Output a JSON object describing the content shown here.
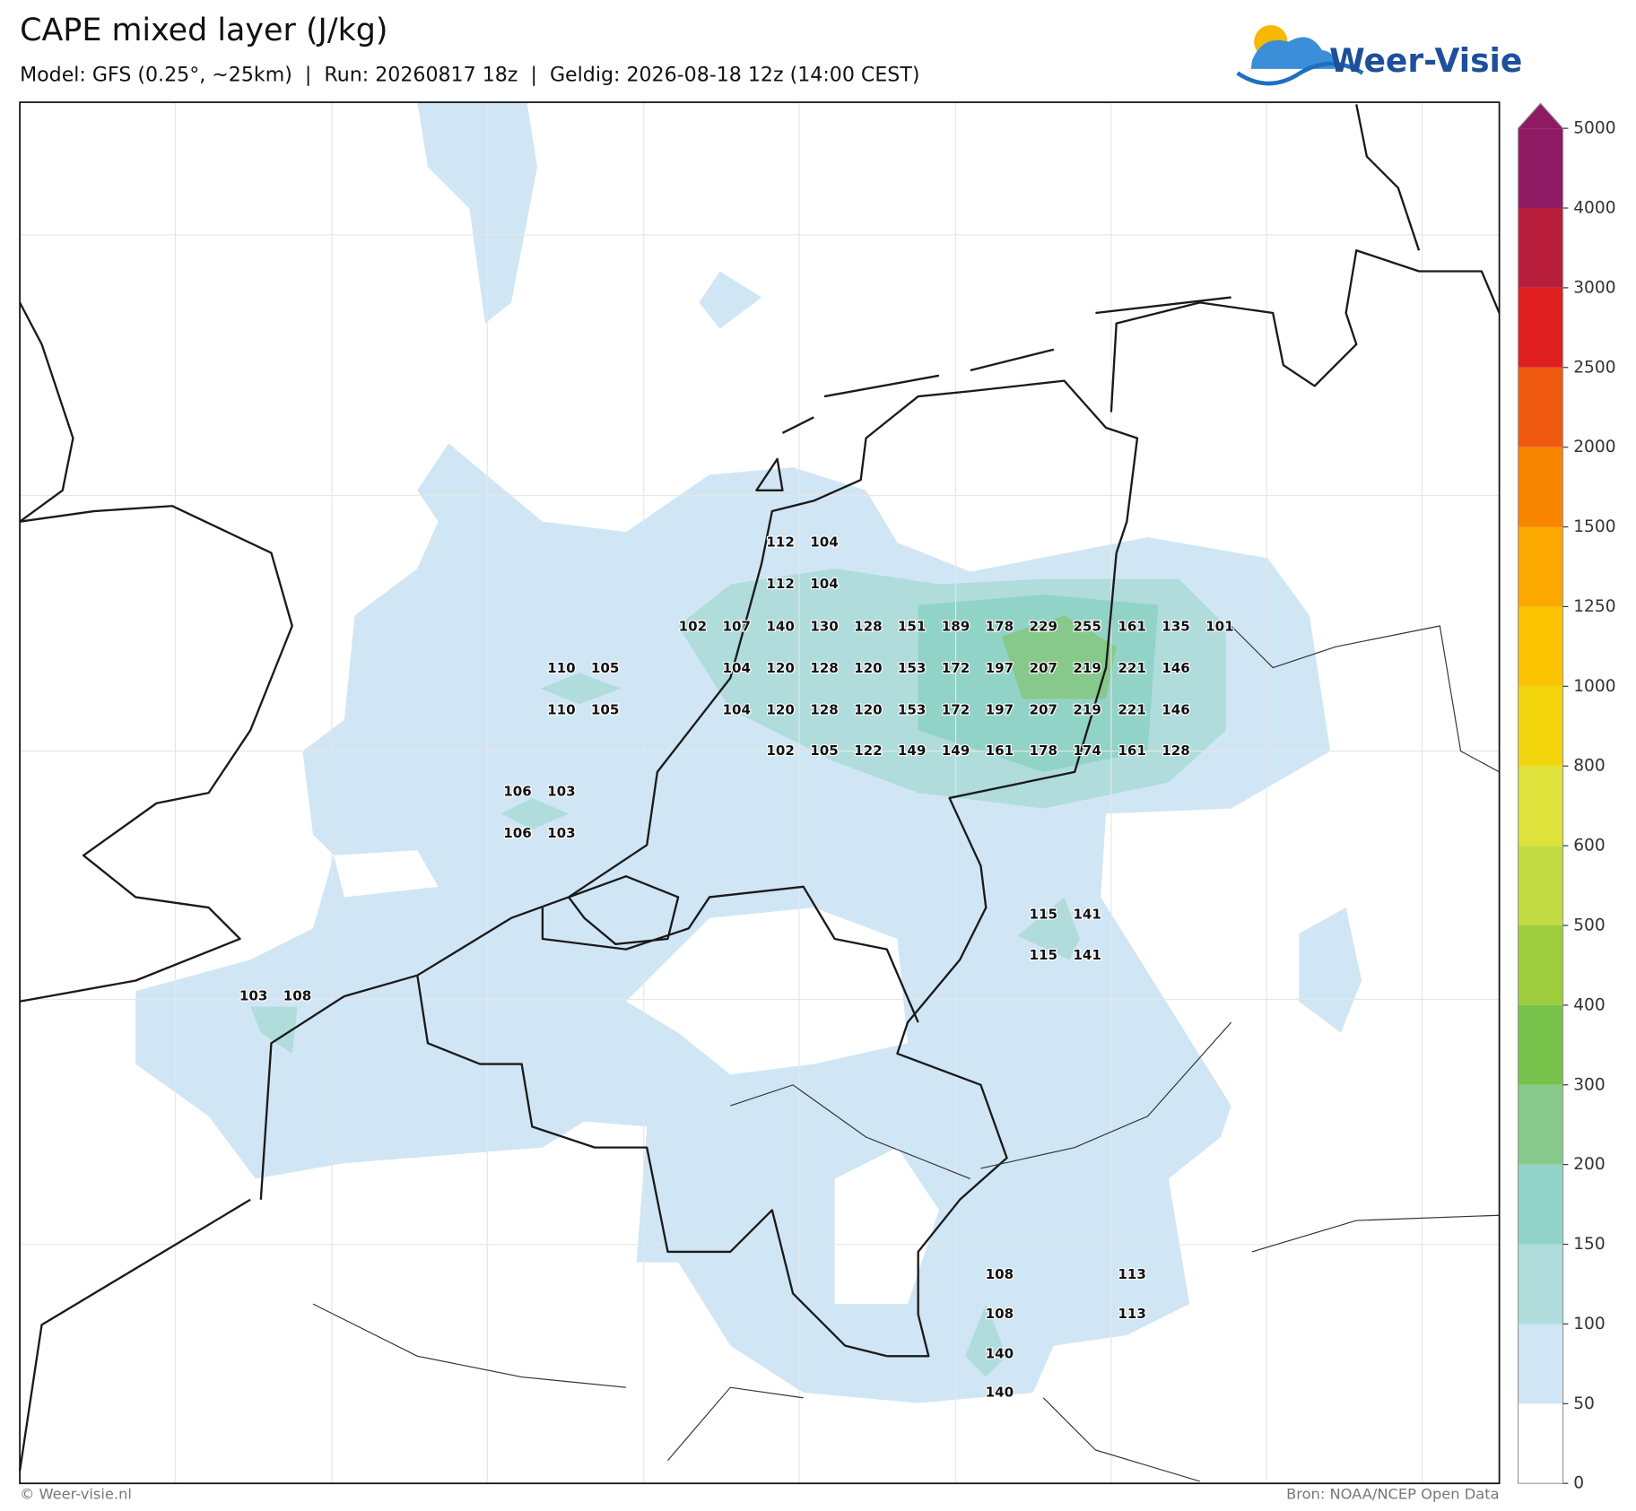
{
  "header": {
    "title": "CAPE mixed layer (J/kg)",
    "subtitle": "Model: GFS (0.25°, ~25km)  |  Run: 20260817 18z  |  Geldig: 2026-08-18 12z (14:00 CEST)",
    "logo": "Weer-Visie"
  },
  "map": {
    "value_rows": [
      [
        112,
        104
      ],
      [
        112,
        104
      ],
      [
        102,
        107,
        140,
        130,
        128,
        151,
        189,
        178,
        229,
        255,
        161,
        135,
        101
      ],
      [
        110,
        105,
        104,
        120,
        128,
        120,
        153,
        172,
        197,
        207,
        219,
        221,
        146
      ],
      [
        110,
        105,
        104,
        120,
        128,
        120,
        153,
        172,
        197,
        207,
        219,
        221,
        146
      ],
      [
        102,
        105,
        122,
        149,
        149,
        161,
        178,
        174,
        161,
        128
      ],
      [
        106,
        103
      ],
      [
        106,
        103
      ],
      [
        115,
        141
      ],
      [
        115,
        141
      ],
      [
        103,
        108
      ],
      [
        108,
        113
      ],
      [
        108,
        113
      ],
      [
        140
      ],
      [
        140
      ]
    ]
  },
  "colorbar": {
    "ticks": [
      0,
      50,
      100,
      150,
      200,
      300,
      400,
      500,
      600,
      800,
      1000,
      1250,
      1500,
      2000,
      2500,
      3000,
      4000,
      5000
    ],
    "colors": [
      "#ffffff",
      "#d0e6f5",
      "#b0dcdc",
      "#92d3c8",
      "#86c98a",
      "#76c24b",
      "#9dcc3c",
      "#c2db42",
      "#dfe23a",
      "#f3d50e",
      "#fbc200",
      "#fba800",
      "#f88500",
      "#ef5a10",
      "#e02020",
      "#b81e3c",
      "#8e1a63"
    ]
  },
  "footer": {
    "copyright": "© Weer-visie.nl",
    "source": "Bron: NOAA/NCEP Open Data"
  }
}
